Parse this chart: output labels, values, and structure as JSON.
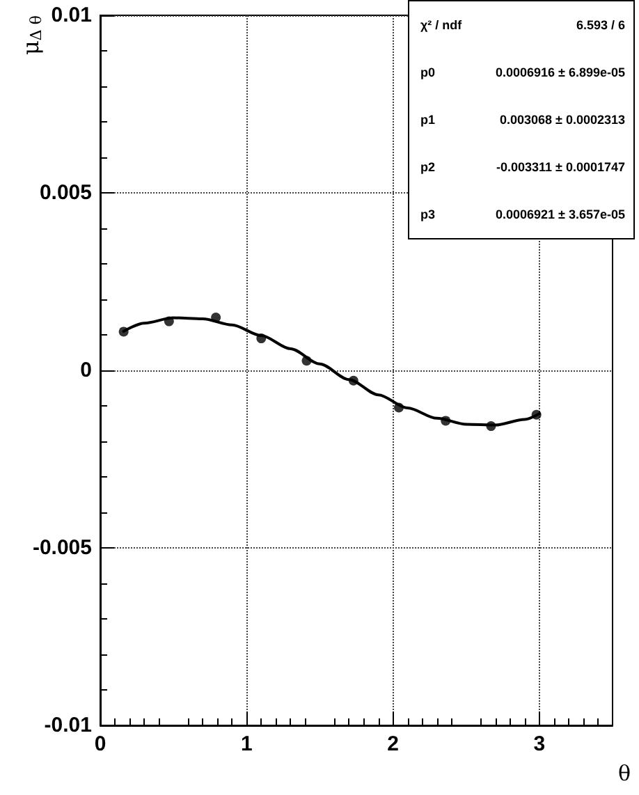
{
  "chart_data": {
    "type": "scatter",
    "xlabel": "θ",
    "ylabel": "μ$_{Δ θ}$",
    "xlim": [
      0,
      3.5
    ],
    "xticks": [
      0,
      1,
      2,
      3
    ],
    "ylim": [
      -0.01,
      0.01
    ],
    "yticks": [
      -0.01,
      -0.005,
      0,
      0.005,
      0.01
    ],
    "grid": true,
    "marker": "circle",
    "series": [
      {
        "color": "#000000",
        "x": [
          0.16,
          0.47,
          0.79,
          1.1,
          1.41,
          1.73,
          2.04,
          2.36,
          2.67,
          2.98
        ],
        "values": [
          0.00109,
          0.00138,
          0.00149,
          0.0009,
          0.00027,
          -0.00029,
          -0.00105,
          -0.00142,
          -0.00157,
          -0.00125
        ]
      },
      {
        "type": "line",
        "color": "#000000",
        "marker": "none",
        "line_style": "solid",
        "x": [
          0.16,
          0.3,
          0.5,
          0.7,
          0.9,
          1.1,
          1.3,
          1.5,
          1.7,
          1.9,
          2.1,
          2.3,
          2.5,
          2.7,
          2.9,
          3.0
        ],
        "values": [
          0.0011,
          0.00133,
          0.00148,
          0.00145,
          0.00128,
          0.00098,
          0.00061,
          0.00018,
          -0.00026,
          -0.00069,
          -0.00106,
          -0.00135,
          -0.00152,
          -0.00154,
          -0.00138,
          -0.00122
        ]
      }
    ],
    "annotations": [
      "χ² / ndf",
      "6.593 / 6",
      "p0",
      "0.0006916 ± 6.899e-05",
      "p1",
      "0.003068 ± 0.0002313",
      "p2",
      "-0.003311 ± 0.0001747",
      "p3",
      "0.0006921 ± 3.657e-05"
    ]
  }
}
